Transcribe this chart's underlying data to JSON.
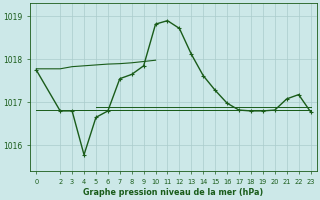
{
  "title": "Graphe pression niveau de la mer (hPa)",
  "background_color": "#cce8e8",
  "grid_color": "#aacccc",
  "line_color": "#1a5c1a",
  "xlim": [
    -0.5,
    23.5
  ],
  "ylim": [
    1015.4,
    1019.3
  ],
  "yticks": [
    1016,
    1017,
    1018,
    1019
  ],
  "xtick_positions": [
    0,
    2,
    3,
    4,
    5,
    6,
    7,
    8,
    9,
    10,
    11,
    12,
    13,
    14,
    15,
    16,
    17,
    18,
    19,
    20,
    21,
    22,
    23
  ],
  "series": [
    {
      "x": [
        0,
        2,
        3,
        4,
        5,
        6,
        7,
        8,
        9,
        10,
        11,
        12,
        13,
        14,
        15,
        16,
        17,
        18,
        19,
        20,
        21,
        22,
        23
      ],
      "y": [
        1017.75,
        1016.8,
        1016.8,
        1015.78,
        1016.65,
        1016.8,
        1017.55,
        1017.65,
        1017.85,
        1018.82,
        1018.9,
        1018.72,
        1018.12,
        1017.62,
        1017.28,
        1016.98,
        1016.82,
        1016.8,
        1016.8,
        1016.82,
        1017.08,
        1017.18,
        1016.78
      ],
      "has_markers": true,
      "linewidth": 1.0,
      "markersize": 3.5
    },
    {
      "x": [
        0,
        2,
        3,
        4,
        5,
        6,
        7,
        8,
        9,
        10
      ],
      "y": [
        1017.78,
        1017.78,
        1017.83,
        1017.85,
        1017.87,
        1017.89,
        1017.9,
        1017.92,
        1017.95,
        1017.98
      ],
      "has_markers": false,
      "linewidth": 0.8,
      "markersize": 0
    },
    {
      "x": [
        0,
        2,
        3,
        4,
        5,
        6,
        7,
        8,
        9,
        10,
        11,
        12,
        13,
        14,
        15,
        16,
        17,
        18,
        19,
        20,
        21,
        22,
        23
      ],
      "y": [
        1016.82,
        1016.82,
        1016.82,
        1016.82,
        1016.82,
        1016.82,
        1016.82,
        1016.82,
        1016.82,
        1016.82,
        1016.82,
        1016.82,
        1016.82,
        1016.82,
        1016.82,
        1016.82,
        1016.82,
        1016.82,
        1016.82,
        1016.82,
        1016.82,
        1016.82,
        1016.82
      ],
      "has_markers": false,
      "linewidth": 0.7,
      "markersize": 0
    },
    {
      "x": [
        2,
        3,
        5,
        6,
        7,
        8,
        9,
        10,
        11,
        12,
        13,
        14,
        15,
        16,
        17,
        18,
        19,
        20,
        21,
        22,
        23
      ],
      "y": [
        1016.82,
        1016.82,
        1016.82,
        1016.82,
        1016.82,
        1016.82,
        1016.82,
        1016.82,
        1016.82,
        1016.82,
        1016.82,
        1016.82,
        1016.82,
        1016.82,
        1016.82,
        1016.82,
        1016.82,
        1016.82,
        1016.82,
        1016.82,
        1016.82
      ],
      "has_markers": false,
      "linewidth": 0.7,
      "markersize": 0
    },
    {
      "x": [
        5,
        6,
        7,
        8,
        9,
        10,
        11,
        12,
        13,
        14,
        15,
        16,
        17,
        18,
        19,
        20,
        21,
        22,
        23
      ],
      "y": [
        1016.88,
        1016.88,
        1016.88,
        1016.88,
        1016.88,
        1016.88,
        1016.88,
        1016.88,
        1016.88,
        1016.88,
        1016.88,
        1016.88,
        1016.88,
        1016.88,
        1016.88,
        1016.88,
        1016.88,
        1016.88,
        1016.88
      ],
      "has_markers": false,
      "linewidth": 0.7,
      "markersize": 0
    }
  ]
}
